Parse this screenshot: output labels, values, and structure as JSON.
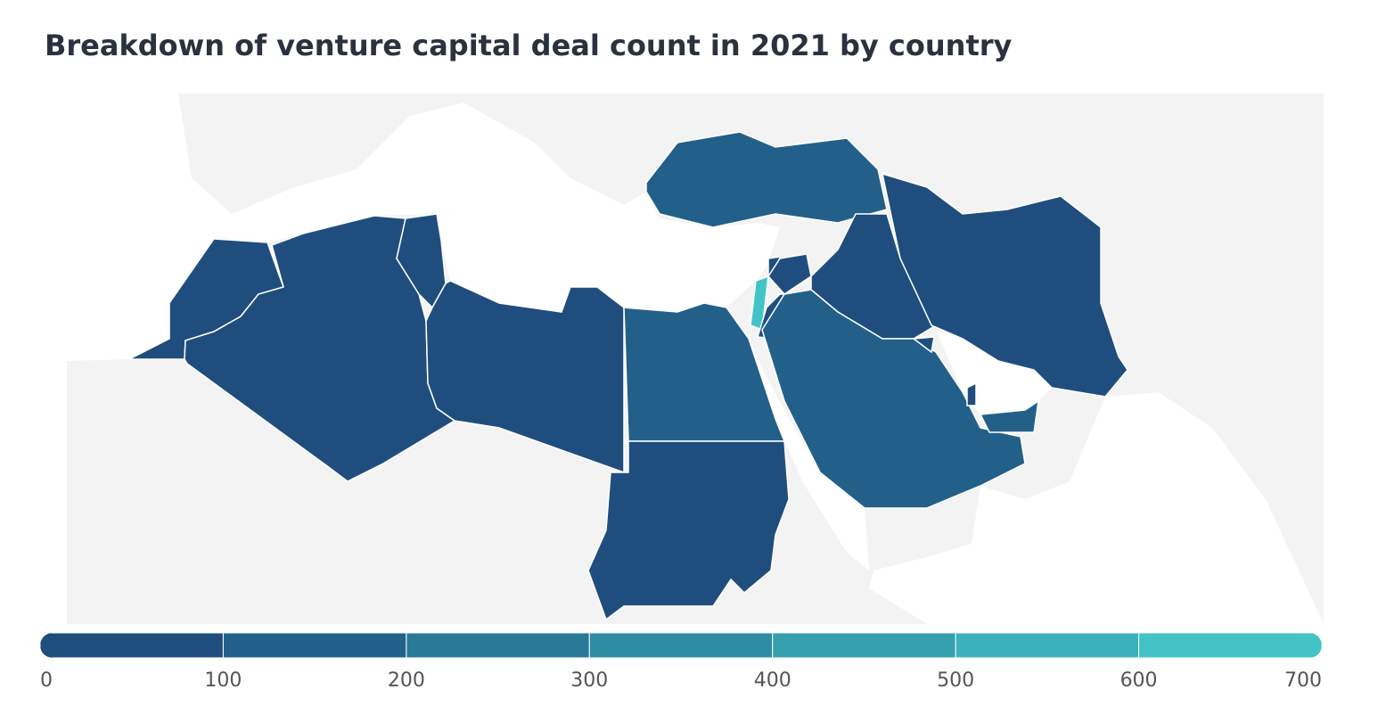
{
  "chart_data": {
    "type": "choropleth",
    "title": "Breakdown of venture capital deal count in 2021 by country",
    "regions": {
      "values": [
        40,
        10,
        30,
        5,
        150,
        5,
        160,
        650,
        20,
        10,
        30,
        15,
        160,
        10,
        20,
        150,
        30
      ]
    },
    "colorbar": {
      "range": [
        0,
        700
      ],
      "ticks": [
        0,
        100,
        200,
        300,
        400,
        500,
        600,
        700
      ],
      "colors": [
        "#1f4e7e",
        "#22608a",
        "#287a97",
        "#2e8ca3",
        "#359fae",
        "#3bb2bb",
        "#42c4c6"
      ]
    },
    "no_data_color": "#f3f3f3"
  }
}
